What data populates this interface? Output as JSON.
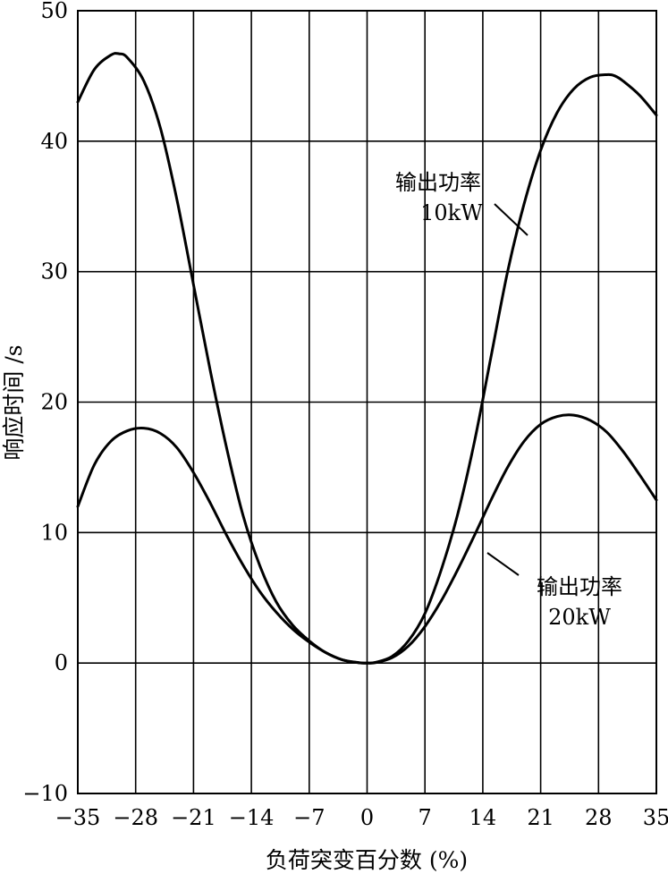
{
  "chart_data": {
    "type": "line",
    "xlabel": "负荷突变百分数 (%)",
    "ylabel": "响应时间 /s",
    "xlim": [
      -35,
      35
    ],
    "ylim": [
      -10,
      50
    ],
    "xticks": [
      -35,
      -28,
      -21,
      -14,
      -7,
      0,
      7,
      14,
      21,
      28,
      35
    ],
    "yticks": [
      -10,
      0,
      10,
      20,
      30,
      40,
      50
    ],
    "xtick_labels": [
      "−35",
      "−28",
      "−21",
      "−14",
      "−7",
      "0",
      "7",
      "14",
      "21",
      "28",
      "35"
    ],
    "ytick_labels": [
      "−10",
      "0",
      "10",
      "20",
      "30",
      "40",
      "50"
    ],
    "grid": true,
    "series": [
      {
        "name": "输出功率 10kW",
        "x": [
          -35,
          -33,
          -31,
          -30,
          -29,
          -27,
          -25,
          -23,
          -21,
          -19,
          -17,
          -15,
          -13,
          -11,
          -9,
          -7,
          -5,
          -3,
          -1,
          0,
          1,
          3,
          5,
          7,
          9,
          11,
          13,
          15,
          17,
          19,
          21,
          23,
          25,
          27,
          29,
          30,
          31,
          33,
          35
        ],
        "y": [
          43.0,
          45.5,
          46.6,
          46.7,
          46.4,
          44.6,
          41.0,
          35.5,
          29.0,
          22.5,
          16.5,
          11.3,
          7.5,
          4.7,
          2.9,
          1.7,
          0.8,
          0.25,
          0.03,
          0.0,
          0.05,
          0.5,
          1.7,
          3.8,
          7.2,
          11.5,
          17.0,
          23.5,
          30.0,
          35.2,
          39.3,
          42.2,
          44.0,
          44.9,
          45.1,
          45.0,
          44.6,
          43.5,
          42.0
        ]
      },
      {
        "name": "输出功率 20kW",
        "x": [
          -35,
          -33,
          -31,
          -29,
          -27,
          -25,
          -23,
          -21,
          -19,
          -17,
          -15,
          -13,
          -11,
          -9,
          -7,
          -5,
          -3,
          -1,
          0,
          1,
          3,
          5,
          7,
          9,
          11,
          13,
          15,
          17,
          19,
          21,
          23,
          25,
          27,
          29,
          31,
          33,
          35
        ],
        "y": [
          12.0,
          15.2,
          17.0,
          17.8,
          18.0,
          17.6,
          16.5,
          14.6,
          12.3,
          9.8,
          7.5,
          5.5,
          3.9,
          2.6,
          1.6,
          0.8,
          0.25,
          0.02,
          0.0,
          0.03,
          0.4,
          1.3,
          2.8,
          4.8,
          7.2,
          9.8,
          12.5,
          15.0,
          17.0,
          18.3,
          18.9,
          19.0,
          18.6,
          17.7,
          16.2,
          14.4,
          12.5
        ]
      }
    ],
    "annotations": [
      {
        "series": 0,
        "line1": "输出功率",
        "line2": "10kW"
      },
      {
        "series": 1,
        "line1": "输出功率",
        "line2": "20kW"
      }
    ]
  }
}
